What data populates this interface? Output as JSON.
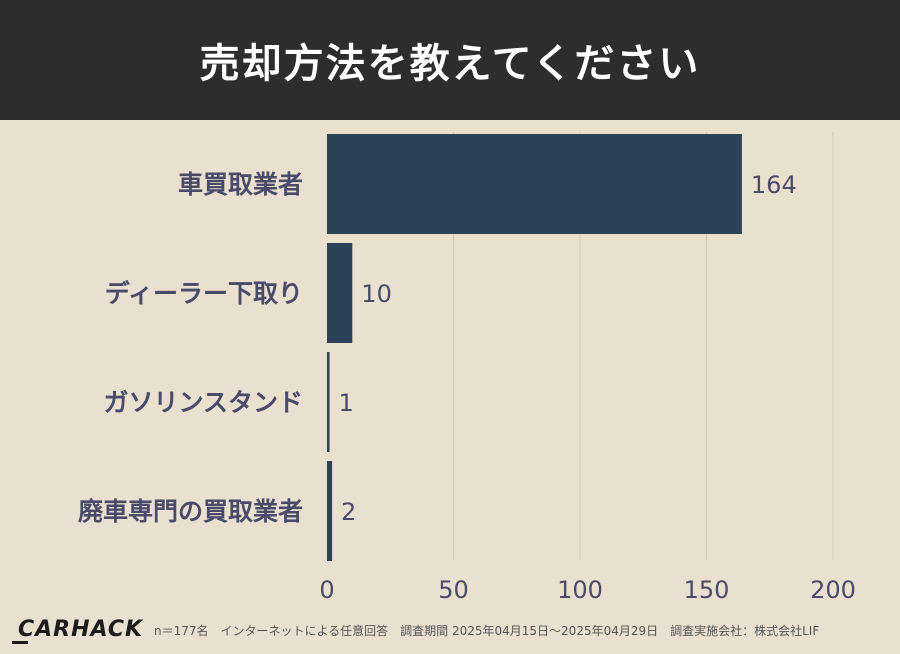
{
  "header": {
    "title": "売却方法を教えてください"
  },
  "chart_data": {
    "type": "bar",
    "orientation": "horizontal",
    "categories": [
      "車買取業者",
      "ディーラー下取り",
      "ガソリンスタンド",
      "廃車専門の買取業者"
    ],
    "values": [
      164,
      10,
      1,
      2
    ],
    "xlim": [
      0,
      200
    ],
    "x_ticks": [
      0,
      50,
      100,
      150,
      200
    ],
    "grid": "vertical",
    "bar_color": "#2c4257",
    "label_color": "#4a4a6a"
  },
  "footer": {
    "logo": "CARHACK",
    "note": "n＝177名　インターネットによる任意回答　調査期間 2025年04月15日〜2025年04月29日　調査実施会社：株式会社LIF"
  }
}
